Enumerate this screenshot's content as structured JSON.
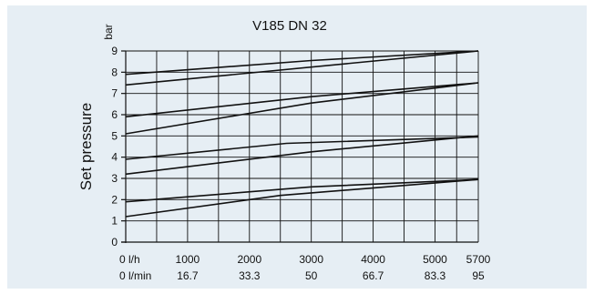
{
  "chart_data": {
    "type": "line",
    "title": "V185 DN 32",
    "ylabel": "Set pressure",
    "yunit": "bar",
    "ylim": [
      0,
      9
    ],
    "yticks": [
      0,
      1,
      2,
      3,
      4,
      5,
      6,
      7,
      8,
      9
    ],
    "xlim": [
      0,
      5700
    ],
    "xticks": [
      {
        "value": 0,
        "lh": "0  l/h",
        "lmin": "0  l/min"
      },
      {
        "value": 1000,
        "lh": "1000",
        "lmin": "16.7"
      },
      {
        "value": 2000,
        "lh": "2000",
        "lmin": "33.3"
      },
      {
        "value": 3000,
        "lh": "3000",
        "lmin": "50"
      },
      {
        "value": 4000,
        "lh": "4000",
        "lmin": "66.7"
      },
      {
        "value": 5000,
        "lh": "5000",
        "lmin": "83.3"
      },
      {
        "value": 5700,
        "lh": "5700",
        "lmin": "95"
      }
    ],
    "xgrid": [
      0,
      500,
      1000,
      1500,
      2000,
      2500,
      3000,
      3500,
      4000,
      4500,
      5000,
      5350,
      5700
    ],
    "grid": true,
    "series": [
      {
        "points": [
          [
            0,
            7.4
          ],
          [
            5700,
            9.0
          ]
        ]
      },
      {
        "points": [
          [
            0,
            7.9
          ],
          [
            3000,
            8.55
          ],
          [
            5700,
            9.0
          ]
        ]
      },
      {
        "points": [
          [
            0,
            5.1
          ],
          [
            3000,
            6.55
          ],
          [
            5700,
            7.5
          ]
        ]
      },
      {
        "points": [
          [
            0,
            5.9
          ],
          [
            3000,
            6.85
          ],
          [
            5700,
            7.5
          ]
        ]
      },
      {
        "points": [
          [
            0,
            3.2
          ],
          [
            3000,
            4.25
          ],
          [
            5700,
            5.0
          ]
        ]
      },
      {
        "points": [
          [
            0,
            3.9
          ],
          [
            2600,
            4.65
          ],
          [
            5700,
            4.95
          ]
        ]
      },
      {
        "points": [
          [
            0,
            1.2
          ],
          [
            2500,
            2.2
          ],
          [
            5700,
            2.95
          ]
        ]
      },
      {
        "points": [
          [
            0,
            1.9
          ],
          [
            3000,
            2.6
          ],
          [
            5700,
            2.95
          ]
        ]
      }
    ]
  }
}
